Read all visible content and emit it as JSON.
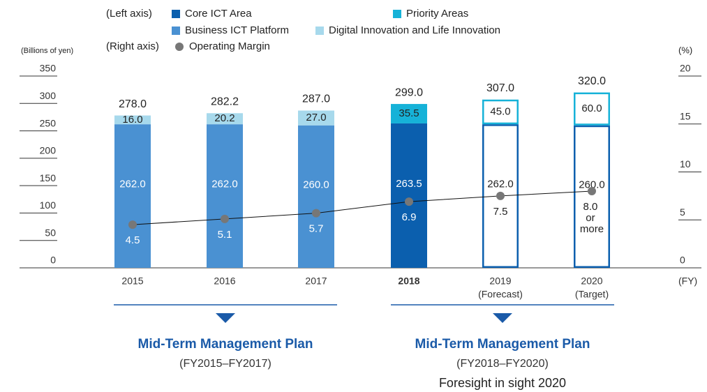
{
  "chart_data": {
    "type": "combo",
    "y_label": "(Billions of yen)",
    "y2_label": "(%)",
    "x_label": "(FY)",
    "left_axis_label": "(Left axis)",
    "right_axis_label": "(Right axis)",
    "categories": [
      "2015",
      "2016",
      "2017",
      "2018",
      "2019",
      "2020"
    ],
    "category_notes": [
      null,
      null,
      null,
      null,
      "(Forecast)",
      "(Target)"
    ],
    "bold": [
      false,
      false,
      false,
      true,
      false,
      false
    ],
    "styles": [
      "fill",
      "fill",
      "fill",
      "fill",
      "outline",
      "outline"
    ],
    "series": [
      {
        "name": "Core ICT Area",
        "type": "bar",
        "color": "#0b5fae",
        "values": [
          null,
          null,
          null,
          263.5,
          262.0,
          260.0
        ],
        "value_labels": [
          null,
          null,
          null,
          "263.5",
          "262.0",
          "260.0"
        ]
      },
      {
        "name": "Priority Areas",
        "type": "bar",
        "color": "#16b2d8",
        "values": [
          null,
          null,
          null,
          35.5,
          45.0,
          60.0
        ],
        "value_labels": [
          null,
          null,
          null,
          "35.5",
          "45.0",
          "60.0"
        ]
      },
      {
        "name": "Business ICT Platform",
        "type": "bar",
        "color": "#4a91d2",
        "values": [
          262.0,
          262.0,
          260.0,
          null,
          null,
          null
        ],
        "value_labels": [
          "262.0",
          "262.0",
          "260.0",
          null,
          null,
          null
        ]
      },
      {
        "name": "Digital Innovation and Life Innovation",
        "type": "bar",
        "color": "#a7d9ec",
        "values": [
          16.0,
          20.2,
          27.0,
          null,
          null,
          null
        ],
        "value_labels": [
          "16.0",
          "20.2",
          "27.0",
          null,
          null,
          null
        ]
      },
      {
        "name": "Operating Margin",
        "type": "line",
        "axis": "y2",
        "color": "#777777",
        "values": [
          4.5,
          5.1,
          5.7,
          6.9,
          7.5,
          8.0
        ],
        "value_labels": [
          "4.5",
          "5.1",
          "5.7",
          "6.9",
          "7.5",
          "8.0 or more"
        ]
      }
    ],
    "totals": [
      278.0,
      282.2,
      287.0,
      299.0,
      307.0,
      320.0
    ],
    "total_labels": [
      "278.0",
      "282.2",
      "287.0",
      "299.0",
      "307.0",
      "320.0"
    ],
    "ylim": [
      0,
      350
    ],
    "yticks": [
      0,
      50,
      100,
      150,
      200,
      250,
      300,
      350
    ],
    "y2lim": [
      0,
      20
    ],
    "y2ticks": [
      0,
      5,
      10,
      15,
      20
    ],
    "plans": [
      {
        "title": "Mid-Term Management Plan",
        "period": "(FY2015–FY2017)"
      },
      {
        "title": "Mid-Term Management Plan",
        "period": "(FY2018–FY2020)",
        "name": "Foresight in sight 2020"
      }
    ]
  }
}
